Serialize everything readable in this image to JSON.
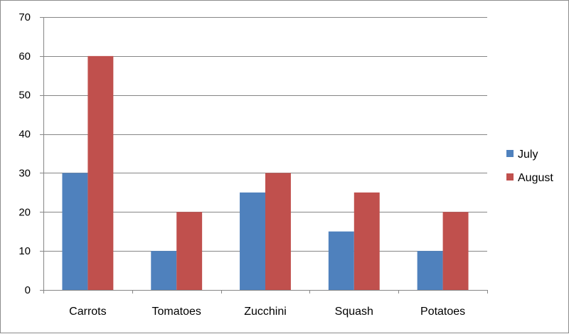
{
  "chart_data": {
    "type": "bar",
    "title": "",
    "xlabel": "",
    "ylabel": "",
    "categories": [
      "Carrots",
      "Tomatoes",
      "Zucchini",
      "Squash",
      "Potatoes"
    ],
    "series": [
      {
        "name": "July",
        "values": [
          30,
          10,
          25,
          15,
          10
        ],
        "color": "#4f81bd"
      },
      {
        "name": "August",
        "values": [
          60,
          20,
          30,
          25,
          20
        ],
        "color": "#c0504d"
      }
    ],
    "ylim": [
      0,
      70
    ],
    "yticks": [
      0,
      10,
      20,
      30,
      40,
      50,
      60,
      70
    ],
    "grid": true,
    "legend_position": "right"
  }
}
